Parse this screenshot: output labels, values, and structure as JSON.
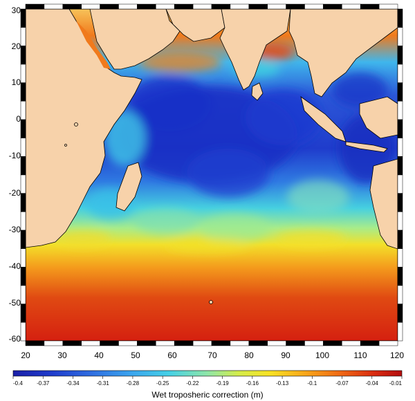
{
  "map": {
    "lon_ticks": [
      "20",
      "30",
      "40",
      "50",
      "60",
      "70",
      "80",
      "90",
      "100",
      "110",
      "120"
    ],
    "lat_ticks": [
      "30",
      "20",
      "10",
      "0",
      "-10",
      "-20",
      "-30",
      "-40",
      "-50",
      "-60"
    ],
    "lon_range": [
      19,
      121
    ],
    "lat_range": [
      -62,
      32
    ],
    "land_color": "#f7d2aa",
    "coast_color": "#000000",
    "field_variable": "Wet tropospheric correction (m)"
  },
  "colorbar": {
    "title": "Wet troposheric correction (m)",
    "labels": [
      "-0.4",
      "-0.37",
      "-0.34",
      "-0.31",
      "-0.28",
      "-0.25",
      "-0.22",
      "-0.19",
      "-0.16",
      "-0.13",
      "-0.1",
      "-0.07",
      "-0.04",
      "-0.01"
    ],
    "range": [
      -0.4,
      -0.01
    ],
    "stops": [
      "#1a1fa8",
      "#1f3ccc",
      "#2f6de0",
      "#3aa3ee",
      "#45d0e6",
      "#8fe6a8",
      "#d4ec4a",
      "#f8e223",
      "#f8a81a",
      "#f06a14",
      "#d82a10",
      "#b30d0d"
    ]
  },
  "colors": {
    "deep_blue": "#1f3ccc",
    "cyan": "#3ec8e8",
    "yellow": "#f5e22a",
    "orange": "#f48a1c",
    "red": "#d52010"
  }
}
